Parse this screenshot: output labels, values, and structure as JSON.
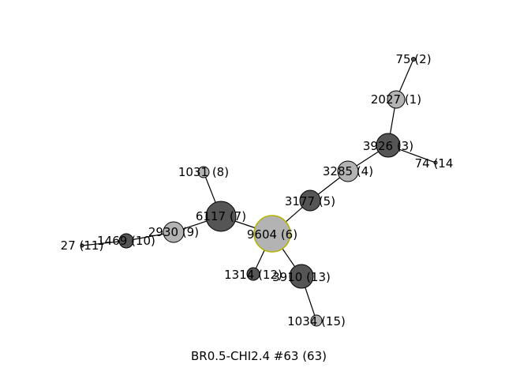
{
  "colors": {
    "dark": "#555555",
    "light": "#b3b3b3",
    "root_outline": "#b5b500",
    "edge": "#000000"
  },
  "caption": "BR0.5-CHI2.4 #63 (63)",
  "nodes": [
    {
      "id": "n1",
      "label": "2027 (1)",
      "shade": "light"
    },
    {
      "id": "n2",
      "label": "75 (2)",
      "shade": "dark"
    },
    {
      "id": "n3",
      "label": "3926 (3)",
      "shade": "dark"
    },
    {
      "id": "n4",
      "label": "3285 (4)",
      "shade": "light"
    },
    {
      "id": "n5",
      "label": "3177 (5)",
      "shade": "dark"
    },
    {
      "id": "n6",
      "label": "9604 (6)",
      "shade": "light",
      "root": true
    },
    {
      "id": "n7",
      "label": "6117 (7)",
      "shade": "dark"
    },
    {
      "id": "n8",
      "label": "1031 (8)",
      "shade": "light"
    },
    {
      "id": "n9",
      "label": "2930 (9)",
      "shade": "light"
    },
    {
      "id": "n10",
      "label": "1469 (10)",
      "shade": "dark"
    },
    {
      "id": "n11",
      "label": "27 (11)",
      "shade": "dark"
    },
    {
      "id": "n12",
      "label": "1314 (12)",
      "shade": "dark"
    },
    {
      "id": "n13",
      "label": "3910 (13)",
      "shade": "dark"
    },
    {
      "id": "n14",
      "label": "74 (14",
      "shade": "light"
    },
    {
      "id": "n15",
      "label": "1034 (15)",
      "shade": "light"
    }
  ],
  "edges": [
    [
      "n2",
      "n1"
    ],
    [
      "n1",
      "n3"
    ],
    [
      "n3",
      "n14"
    ],
    [
      "n3",
      "n4"
    ],
    [
      "n4",
      "n5"
    ],
    [
      "n5",
      "n6"
    ],
    [
      "n6",
      "n7"
    ],
    [
      "n7",
      "n8"
    ],
    [
      "n7",
      "n9"
    ],
    [
      "n9",
      "n10"
    ],
    [
      "n10",
      "n11"
    ],
    [
      "n6",
      "n12"
    ],
    [
      "n6",
      "n13"
    ],
    [
      "n13",
      "n15"
    ]
  ]
}
